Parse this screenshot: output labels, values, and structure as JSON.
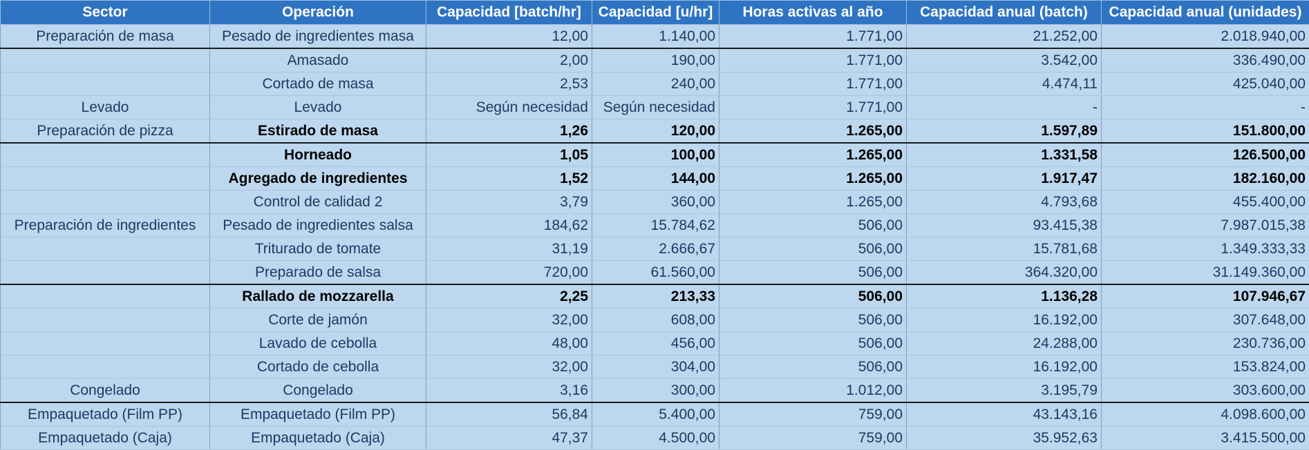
{
  "headers": [
    "Sector",
    "Operación",
    "Capacidad [batch/hr]",
    "Capacidad [u/hr]",
    "Horas activas al año",
    "Capacidad anual (batch)",
    "Capacidad anual (unidades)"
  ],
  "rows": [
    [
      "Preparación de masa",
      "Pesado de ingredientes masa",
      "12,00",
      "1.140,00",
      "1.771,00",
      "21.252,00",
      "2.018.940,00"
    ],
    [
      "",
      "Amasado",
      "2,00",
      "190,00",
      "1.771,00",
      "3.542,00",
      "336.490,00"
    ],
    [
      "",
      "Cortado de masa",
      "2,53",
      "240,00",
      "1.771,00",
      "4.474,11",
      "425.040,00"
    ],
    [
      "Levado",
      "Levado",
      "Según necesidad",
      "Según necesidad",
      "1.771,00",
      "-",
      "-"
    ],
    [
      "Preparación de pizza",
      "Estirado de masa",
      "1,26",
      "120,00",
      "1.265,00",
      "1.597,89",
      "151.800,00"
    ],
    [
      "",
      "Horneado",
      "1,05",
      "100,00",
      "1.265,00",
      "1.331,58",
      "126.500,00"
    ],
    [
      "",
      "Agregado de ingredientes",
      "1,52",
      "144,00",
      "1.265,00",
      "1.917,47",
      "182.160,00"
    ],
    [
      "",
      "Control de calidad 2",
      "3,79",
      "360,00",
      "1.265,00",
      "4.793,68",
      "455.400,00"
    ],
    [
      "Preparación de ingredientes",
      "Pesado de ingredientes salsa",
      "184,62",
      "15.784,62",
      "506,00",
      "93.415,38",
      "7.987.015,38"
    ],
    [
      "",
      "Triturado de tomate",
      "31,19",
      "2.666,67",
      "506,00",
      "15.781,68",
      "1.349.333,33"
    ],
    [
      "",
      "Preparado de salsa",
      "720,00",
      "61.560,00",
      "506,00",
      "364.320,00",
      "31.149.360,00"
    ],
    [
      "",
      "Rallado de mozzarella",
      "2,25",
      "213,33",
      "506,00",
      "1.136,28",
      "107.946,67"
    ],
    [
      "",
      "Corte de jamón",
      "32,00",
      "608,00",
      "506,00",
      "16.192,00",
      "307.648,00"
    ],
    [
      "",
      "Lavado de cebolla",
      "48,00",
      "456,00",
      "506,00",
      "24.288,00",
      "230.736,00"
    ],
    [
      "",
      "Cortado de cebolla",
      "32,00",
      "304,00",
      "506,00",
      "16.192,00",
      "153.824,00"
    ],
    [
      "Congelado",
      "Congelado",
      "3,16",
      "300,00",
      "1.012,00",
      "3.195,79",
      "303.600,00"
    ],
    [
      "Empaquetado (Film PP)",
      "Empaquetado (Film PP)",
      "56,84",
      "5.400,00",
      "759,00",
      "43.143,16",
      "4.098.600,00"
    ],
    [
      "Empaquetado (Caja)",
      "Empaquetado (Caja)",
      "47,37",
      "4.500,00",
      "759,00",
      "35.952,63",
      "3.415.500,00"
    ]
  ],
  "bold_rows": [
    4,
    5,
    6,
    11
  ],
  "separator_rows": [
    1,
    5,
    11,
    16
  ]
}
